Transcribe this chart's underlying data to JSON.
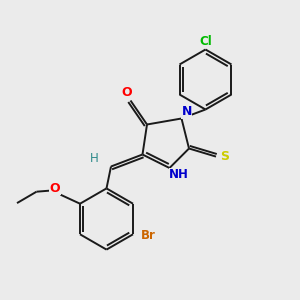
{
  "background_color": "#ebebeb",
  "bond_color": "#1a1a1a",
  "atom_colors": {
    "O": "#ff0000",
    "N": "#0000cc",
    "S": "#cccc00",
    "Br": "#cc6600",
    "Cl": "#00bb00",
    "H": "#2e8b8b",
    "C": "#1a1a1a"
  },
  "figsize": [
    3.0,
    3.0
  ],
  "dpi": 100
}
